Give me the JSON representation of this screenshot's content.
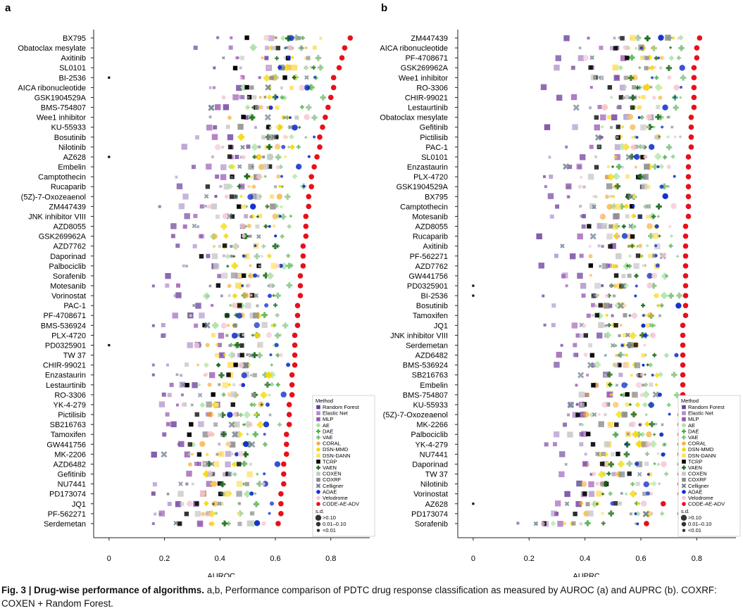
{
  "caption": {
    "label": "Fig. 3 | Drug-wise performance of algorithms.",
    "text": " a,b, Performance comparison of PDTC drug response classification as measured by AUROC (a) and AUPRC (b). COXRF: COXEN + Random Forest."
  },
  "legend": {
    "title": "Method",
    "size_title": "s.d.",
    "size_levels": [
      ">0.10",
      "0.01–0.10",
      "<0.01"
    ]
  },
  "methods": [
    {
      "name": "Random Forest",
      "color": "#6a3d9a",
      "shape": "square",
      "opacity": 0.85
    },
    {
      "name": "Elastic Net",
      "color": "#9e7cc0",
      "shape": "square",
      "opacity": 0.7
    },
    {
      "name": "MLP",
      "color": "#8e44ad",
      "shape": "square",
      "opacity": 0.75
    },
    {
      "name": "AE",
      "color": "#a6e3a1",
      "shape": "diamond",
      "opacity": 0.9
    },
    {
      "name": "DAE",
      "color": "#4daf4a",
      "shape": "plus",
      "opacity": 0.9
    },
    {
      "name": "VAE",
      "color": "#7fbf7b",
      "shape": "plus",
      "opacity": 0.9
    },
    {
      "name": "CORAL",
      "color": "#f5a623",
      "shape": "circle",
      "opacity": 0.7
    },
    {
      "name": "DSN-MMD",
      "color": "#f5d800",
      "shape": "diamond",
      "opacity": 0.95
    },
    {
      "name": "DSN-DANN",
      "color": "#ffe066",
      "shape": "square",
      "opacity": 0.95
    },
    {
      "name": "TCRP",
      "color": "#000000",
      "shape": "square",
      "opacity": 1
    },
    {
      "name": "VAEN",
      "color": "#1b6b1b",
      "shape": "plus",
      "opacity": 1
    },
    {
      "name": "COXEN",
      "color": "#c8c8c8",
      "shape": "square",
      "opacity": 0.9
    },
    {
      "name": "COXRF",
      "color": "#8c8c8c",
      "shape": "square",
      "opacity": 0.9
    },
    {
      "name": "Celligner",
      "color": "#6e7f8e",
      "shape": "cross",
      "opacity": 0.9
    },
    {
      "name": "ADAE",
      "color": "#1030d0",
      "shape": "circle",
      "opacity": 1
    },
    {
      "name": "Velodrome",
      "color": "#f6c6d6",
      "shape": "circle",
      "opacity": 0.9
    },
    {
      "name": "CODE-AE-ADV",
      "color": "#e8101a",
      "shape": "circle",
      "opacity": 1
    }
  ],
  "chart_data": [
    {
      "type": "scatter",
      "panel_label": "a",
      "xlabel": "AUROC",
      "xlim": [
        -0.03,
        0.92
      ],
      "xticks": [
        0,
        0.2,
        0.4,
        0.6,
        0.8
      ],
      "xtick_labels": [
        "0",
        "0.2",
        "0.4",
        "0.6",
        "0.8"
      ],
      "drugs": [
        "BX795",
        "Obatoclax mesylate",
        "Axitinib",
        "SL0101",
        "BI-2536",
        "AICA ribonucleotide",
        "GSK1904529A",
        "BMS-754807",
        "Wee1 inhibitor",
        "KU-55933",
        "Bosutinib",
        "Nilotinib",
        "AZ628",
        "Embelin",
        "Camptothecin",
        "Rucaparib",
        "(5Z)-7-Oxozeaenol",
        "ZM447439",
        "JNK inhibitor VIII",
        "AZD8055",
        "GSK269962A",
        "AZD7762",
        "Daporinad",
        "Palbociclib",
        "Sorafenib",
        "Motesanib",
        "Vorinostat",
        "PAC-1",
        "PF-4708671",
        "BMS-536924",
        "PLX-4720",
        "PD0325901",
        "TW 37",
        "CHIR-99021",
        "Enzastaurin",
        "Lestaurtinib",
        "RO-3306",
        "YK-4-279",
        "Pictilisib",
        "SB216763",
        "Tamoxifen",
        "GW441756",
        "MK-2206",
        "AZD6482",
        "Gefitinib",
        "NU7441",
        "PD173074",
        "JQ1",
        "PF-562271",
        "Serdemetan"
      ],
      "code_ae_adv": [
        0.87,
        0.85,
        0.84,
        0.83,
        0.81,
        0.81,
        0.8,
        0.79,
        0.78,
        0.77,
        0.76,
        0.76,
        0.75,
        0.74,
        0.73,
        0.73,
        0.72,
        0.72,
        0.71,
        0.71,
        0.71,
        0.7,
        0.7,
        0.7,
        0.69,
        0.69,
        0.69,
        0.68,
        0.68,
        0.68,
        0.67,
        0.67,
        0.67,
        0.67,
        0.66,
        0.66,
        0.66,
        0.65,
        0.65,
        0.65,
        0.64,
        0.64,
        0.64,
        0.63,
        0.63,
        0.63,
        0.62,
        0.62,
        0.62,
        0.61
      ],
      "left_outliers": [
        {
          "row": 4,
          "x": 0.0
        },
        {
          "row": 12,
          "x": 0.0
        },
        {
          "row": 31,
          "x": 0.0
        }
      ]
    },
    {
      "type": "scatter",
      "panel_label": "b",
      "xlabel": "AUPRC",
      "xlim": [
        -0.03,
        0.92
      ],
      "xticks": [
        0,
        0.2,
        0.4,
        0.6,
        0.8
      ],
      "xtick_labels": [
        "0",
        "0.2",
        "0.4",
        "0.6",
        "0.8"
      ],
      "drugs": [
        "ZM447439",
        "AICA ribonucleotide",
        "PF-4708671",
        "GSK269962A",
        "Wee1 inhibitor",
        "RO-3306",
        "CHIR-99021",
        "Lestaurtinib",
        "Obatoclax mesylate",
        "Gefitinib",
        "Pictilisib",
        "PAC-1",
        "SL0101",
        "Enzastaurin",
        "PLX-4720",
        "GSK1904529A",
        "BX795",
        "Camptothecin",
        "Motesanib",
        "AZD8055",
        "Rucaparib",
        "Axitinib",
        "PF-562271",
        "AZD7762",
        "GW441756",
        "PD0325901",
        "BI-2536",
        "Bosutinib",
        "Tamoxifen",
        "JQ1",
        "JNK inhibitor VIII",
        "Serdemetan",
        "AZD6482",
        "BMS-536924",
        "SB216763",
        "Embelin",
        "BMS-754807",
        "KU-55933",
        "(5Z)-7-Oxozeaenol",
        "MK-2266",
        "Palbociclib",
        "YK-4-279",
        "NU7441",
        "Daporinad",
        "TW 37",
        "Nilotinib",
        "Vorinostat",
        "AZ628",
        "PD173074",
        "Sorafenib"
      ],
      "code_ae_adv": [
        0.81,
        0.8,
        0.8,
        0.79,
        0.79,
        0.79,
        0.79,
        0.79,
        0.78,
        0.78,
        0.78,
        0.78,
        0.77,
        0.77,
        0.77,
        0.77,
        0.77,
        0.77,
        0.77,
        0.76,
        0.76,
        0.76,
        0.76,
        0.76,
        0.76,
        0.76,
        0.76,
        0.76,
        0.76,
        0.75,
        0.75,
        0.75,
        0.75,
        0.75,
        0.75,
        0.75,
        0.75,
        0.75,
        0.74,
        0.74,
        0.74,
        0.74,
        0.74,
        0.74,
        0.74,
        0.74,
        0.74,
        0.68,
        0.74,
        0.62
      ],
      "left_outliers": [
        {
          "row": 25,
          "x": 0.0
        },
        {
          "row": 26,
          "x": 0.0
        },
        {
          "row": 47,
          "x": 0.0
        }
      ]
    }
  ]
}
